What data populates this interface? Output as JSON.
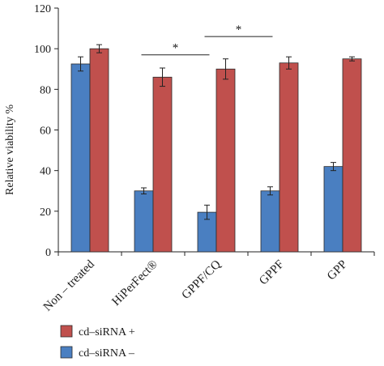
{
  "chart_data": {
    "type": "bar",
    "title": "",
    "xlabel": "",
    "ylabel": "Relative viability %",
    "ylim": [
      0,
      120
    ],
    "yticks": [
      "0",
      "20",
      "40",
      "60",
      "80",
      "100",
      "120"
    ],
    "categories": [
      "Non – treated",
      "HiPerFect®",
      "GPPF/CQ",
      "GPPF",
      "GPP"
    ],
    "series": [
      {
        "name": "cd–siRNA –",
        "color": "#4a7fc1",
        "values": [
          92.5,
          30,
          19.5,
          30,
          42
        ],
        "errors": [
          3.5,
          1.5,
          3.5,
          2,
          2
        ]
      },
      {
        "name": "cd–siRNA +",
        "color": "#c0504d",
        "values": [
          100,
          86,
          90,
          93,
          95
        ],
        "errors": [
          2,
          4.5,
          5,
          3,
          1
        ]
      }
    ],
    "significance": [
      {
        "label": "*",
        "from": "HiPerFect®",
        "to": "GPPF/CQ",
        "y": 97
      },
      {
        "label": "*",
        "from": "GPPF/CQ",
        "to": "GPPF",
        "y": 106
      }
    ],
    "legend": {
      "position": "bottom-left",
      "order": [
        "cd–siRNA +",
        "cd–siRNA –"
      ]
    },
    "grid": false
  }
}
